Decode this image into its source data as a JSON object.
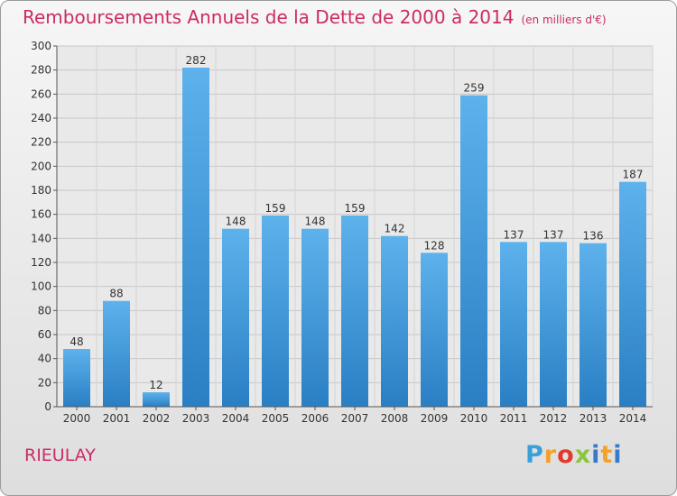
{
  "chart_data": {
    "type": "bar",
    "title": "Remboursements Annuels de la Dette de 2000 à 2014",
    "subtitle": "(en milliers d'€)",
    "categories": [
      "2000",
      "2001",
      "2002",
      "2003",
      "2004",
      "2005",
      "2006",
      "2007",
      "2008",
      "2009",
      "2010",
      "2011",
      "2012",
      "2013",
      "2014"
    ],
    "values": [
      48,
      88,
      12,
      282,
      148,
      159,
      148,
      159,
      142,
      128,
      259,
      137,
      137,
      136,
      187
    ],
    "ylim": [
      0,
      300
    ],
    "yticks": [
      0,
      20,
      40,
      60,
      80,
      100,
      120,
      140,
      160,
      180,
      200,
      220,
      240,
      260,
      280,
      300
    ],
    "grid": true,
    "bar_color": "#3f97d8"
  },
  "footer": {
    "city": "RIEULAY",
    "logo": "Proxiti"
  }
}
